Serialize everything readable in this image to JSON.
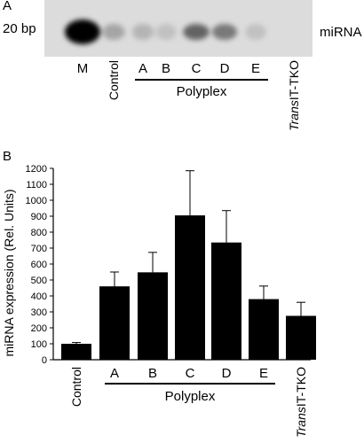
{
  "panel_a": {
    "letter": "A",
    "size_marker": "20 bp",
    "band_label": "miRNA",
    "lanes": [
      "M",
      "Control",
      "A",
      "B",
      "C",
      "D",
      "E",
      "TransIT-TKO"
    ],
    "transit_italic": "Trans",
    "transit_rest": "IT-TKO",
    "group_label": "Polyplex",
    "band_intensity": [
      1.0,
      0.25,
      0.18,
      0.12,
      0.55,
      0.45,
      0.12,
      0.0
    ]
  },
  "panel_b": {
    "letter": "B"
  },
  "chart_data": {
    "type": "bar",
    "categories": [
      "Control",
      "A",
      "B",
      "C",
      "D",
      "E",
      "TransIT-TKO"
    ],
    "values": [
      100,
      460,
      548,
      905,
      735,
      380,
      275
    ],
    "errors": [
      8,
      90,
      125,
      280,
      200,
      82,
      85
    ],
    "ylabel": "miRNA expression (Rel. Units)",
    "ylim": [
      0,
      1200
    ],
    "yticks": [
      0,
      100,
      200,
      300,
      400,
      500,
      600,
      700,
      800,
      900,
      1000,
      1100,
      1200
    ],
    "group_label": "Polyplex",
    "group_members": [
      "A",
      "B",
      "C",
      "D",
      "E"
    ],
    "transit_italic": "Trans",
    "transit_rest": "IT-TKO",
    "bar_color": "#000000",
    "grid": false
  }
}
